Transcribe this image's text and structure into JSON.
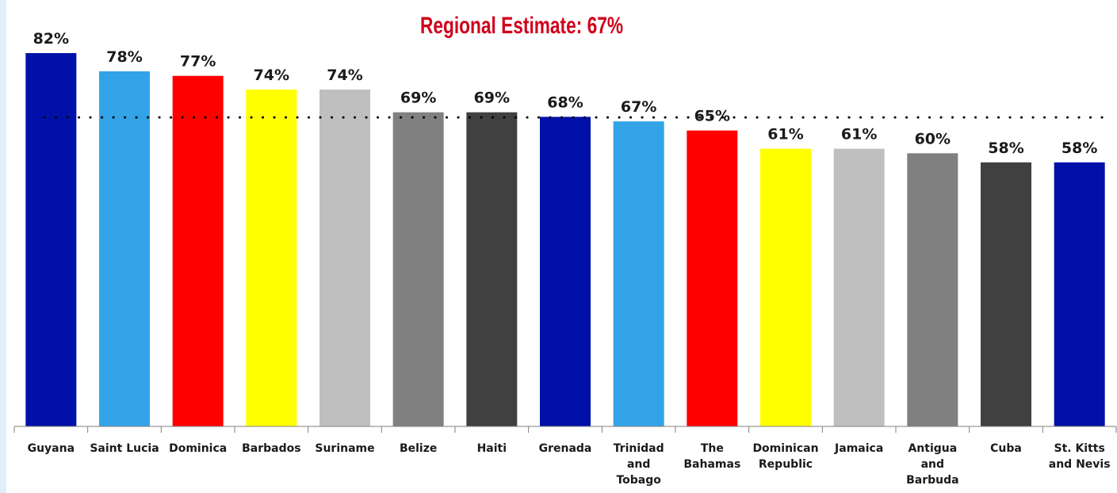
{
  "chart_data": {
    "type": "bar",
    "categories": [
      "Guyana",
      "Saint Lucia",
      "Dominica",
      "Barbados",
      "Suriname",
      "Belize",
      "Haiti",
      "Grenada",
      "Trinidad and Tobago",
      "The Bahamas",
      "Dominican Republic",
      "Jamaica",
      "Antigua and Barbuda",
      "Cuba",
      "St. Kitts and Nevis"
    ],
    "category_lines": [
      [
        "Guyana"
      ],
      [
        "Saint Lucia"
      ],
      [
        "Dominica"
      ],
      [
        "Barbados"
      ],
      [
        "Suriname"
      ],
      [
        "Belize"
      ],
      [
        "Haiti"
      ],
      [
        "Grenada"
      ],
      [
        "Trinidad",
        "and",
        "Tobago"
      ],
      [
        "The",
        "Bahamas"
      ],
      [
        "Dominican",
        "Republic"
      ],
      [
        "Jamaica"
      ],
      [
        "Antigua",
        "and",
        "Barbuda"
      ],
      [
        "Cuba"
      ],
      [
        "St. Kitts",
        "and Nevis"
      ]
    ],
    "values": [
      82,
      78,
      77,
      74,
      74,
      69,
      69,
      68,
      67,
      65,
      61,
      61,
      60,
      58,
      58
    ],
    "data_labels": [
      "82%",
      "78%",
      "77%",
      "74%",
      "74%",
      "69%",
      "69%",
      "68%",
      "67%",
      "65%",
      "61%",
      "61%",
      "60%",
      "58%",
      "58%"
    ],
    "bar_colors": [
      "#0010a8",
      "#33a3e8",
      "#ff0000",
      "#ffff00",
      "#bfbfbf",
      "#808080",
      "#404040",
      "#0010a8",
      "#33a3e8",
      "#ff0000",
      "#ffff00",
      "#bfbfbf",
      "#808080",
      "#404040",
      "#0010a8"
    ],
    "reference_line": {
      "value": 67,
      "style": "dotted",
      "label": "Regional Estimate: 67%",
      "label_color": "#d0021b"
    },
    "ylim": [
      0,
      82
    ],
    "grid": false,
    "legend": "none",
    "title": "",
    "xlabel": "",
    "ylabel": ""
  }
}
